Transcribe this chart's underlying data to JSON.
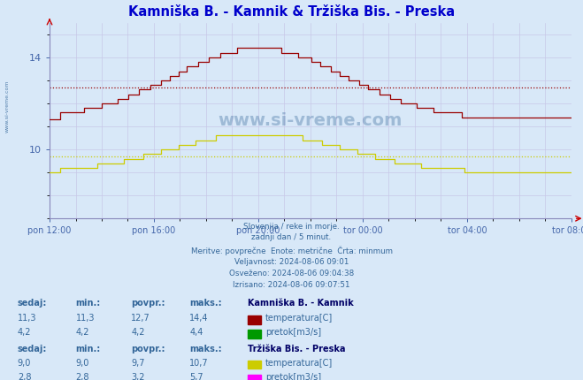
{
  "title": "Kamniška B. - Kamnik & Tržiška Bis. - Preska",
  "title_color": "#0000cc",
  "bg_color": "#d8e8f8",
  "plot_bg_color": "#d8e8f8",
  "grid_color": "#c8c8e8",
  "xlabel_color": "#4466aa",
  "ylabel_color": "#4466aa",
  "ymin": 7.0,
  "ymax": 15.5,
  "ytick_vals": [
    10,
    14
  ],
  "xtick_positions": [
    0,
    4,
    8,
    12,
    16,
    20
  ],
  "xtick_labels": [
    "pon 12:00",
    "pon 16:00",
    "pon 20:00",
    "tor 00:00",
    "tor 04:00",
    "tor 08:00"
  ],
  "kamnik_temp_color": "#990000",
  "kamnik_flow_color": "#009900",
  "preska_temp_color": "#cccc00",
  "preska_flow_color": "#ff00ff",
  "kamnik_temp_avg": 12.7,
  "kamnik_flow_avg": 4.2,
  "preska_temp_avg": 9.7,
  "preska_flow_avg": 3.2,
  "subtitle_lines": [
    "Slovenija / reke in morje.",
    "zadnji dan / 5 minut.",
    "Meritve: povprečne  Enote: metrične  Črta: minmum",
    "Veljavnost: 2024-08-06 09:01",
    "Osveženo: 2024-08-06 09:04:38",
    "Izrisano: 2024-08-06 09:07:51"
  ],
  "table": {
    "headers": [
      "sedaj:",
      "min.:",
      "povpr.:",
      "maks.:"
    ],
    "kamnik_label": "Kamniška B. - Kamnik",
    "kamnik_temp_vals": [
      "11,3",
      "11,3",
      "12,7",
      "14,4"
    ],
    "kamnik_temp_label": "temperatura[C]",
    "kamnik_flow_vals": [
      "4,2",
      "4,2",
      "4,2",
      "4,4"
    ],
    "kamnik_flow_label": "pretok[m3/s]",
    "preska_label": "Tržiška Bis. - Preska",
    "preska_temp_vals": [
      "9,0",
      "9,0",
      "9,7",
      "10,7"
    ],
    "preska_temp_label": "temperatura[C]",
    "preska_flow_vals": [
      "2,8",
      "2,8",
      "3,2",
      "5,7"
    ],
    "preska_flow_label": "pretok[m3/s]"
  }
}
